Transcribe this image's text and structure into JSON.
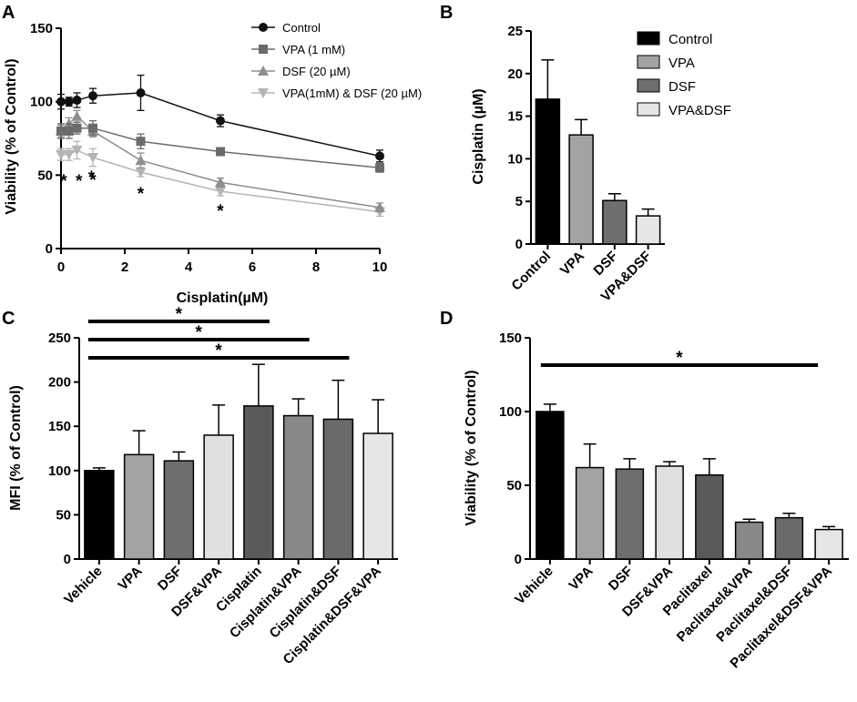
{
  "chart_data": [
    {
      "panel": "A",
      "type": "line",
      "xlabel": "Cisplatin(µM)",
      "ylabel": "Viability (% of Control)",
      "xlim": [
        0,
        10
      ],
      "ylim": [
        0,
        150
      ],
      "xticks": [
        0,
        2,
        4,
        6,
        8,
        10
      ],
      "yticks": [
        0,
        50,
        100,
        150
      ],
      "x": [
        0,
        0.25,
        0.5,
        1,
        2.5,
        5,
        10
      ],
      "legend_position": "top-right",
      "series": [
        {
          "name": "Control",
          "marker": "circle",
          "color": "#111111",
          "values": [
            100,
            100,
            101,
            104,
            106,
            87,
            63
          ],
          "errors": [
            5,
            3,
            5,
            5,
            12,
            4,
            4
          ]
        },
        {
          "name": "VPA (1 mM)",
          "marker": "square",
          "color": "#6b6b6b",
          "values": [
            80,
            80,
            82,
            82,
            73,
            66,
            55
          ],
          "errors": [
            5,
            5,
            4,
            5,
            5,
            2,
            3
          ]
        },
        {
          "name": "DSF (20 µM)",
          "marker": "triangle",
          "color": "#8e8e8e",
          "values": [
            80,
            85,
            90,
            80,
            60,
            45,
            28
          ],
          "errors": [
            4,
            4,
            4,
            4,
            5,
            3,
            3
          ]
        },
        {
          "name": "VPA(1mM) & DSF (20 µM)",
          "marker": "triangle-down",
          "color": "#b5b5b5",
          "values": [
            64,
            64,
            67,
            62,
            52,
            39,
            25
          ],
          "errors": [
            4,
            4,
            6,
            6,
            3,
            3,
            3
          ]
        }
      ],
      "significance_marks": [
        {
          "x": 0,
          "label": "*"
        },
        {
          "x": 0.25,
          "label": "*"
        },
        {
          "x": 0.5,
          "label": "*"
        },
        {
          "x": 1,
          "label": "*"
        },
        {
          "x": 2.5,
          "label": "*"
        },
        {
          "x": 5,
          "label": "*"
        }
      ]
    },
    {
      "panel": "B",
      "type": "bar",
      "ylabel": "Cisplatin (µM)",
      "ylim": [
        0,
        25
      ],
      "yticks": [
        0,
        5,
        10,
        15,
        20,
        25
      ],
      "categories": [
        "Control",
        "VPA",
        "DSF",
        "VPA&DSF"
      ],
      "values": [
        17,
        12.8,
        5.1,
        3.3
      ],
      "errors": [
        4.6,
        1.8,
        0.8,
        0.8
      ],
      "colors": [
        "#000000",
        "#a3a3a3",
        "#6e6e6e",
        "#e6e6e6"
      ],
      "legend": [
        "Control",
        "VPA",
        "DSF",
        "VPA&DSF"
      ],
      "legend_position": "top-right"
    },
    {
      "panel": "C",
      "type": "bar",
      "ylabel": "MFI (% of Control)",
      "ylim": [
        0,
        250
      ],
      "yticks": [
        0,
        50,
        100,
        150,
        200,
        250
      ],
      "categories": [
        "Vehicle",
        "VPA",
        "DSF",
        "DSF&VPA",
        "Cisplatin",
        "Cisplatin&VPA",
        "Cisplatin&DSF",
        "Cisplatin&DSF&VPA"
      ],
      "values": [
        100,
        118,
        111,
        140,
        173,
        162,
        158,
        142
      ],
      "errors": [
        3,
        27,
        10,
        34,
        47,
        19,
        44,
        38
      ],
      "colors": [
        "#000000",
        "#a3a3a3",
        "#6e6e6e",
        "#e0e0e0",
        "#5a5a5a",
        "#888888",
        "#6a6a6a",
        "#e6e6e6"
      ],
      "significance": [
        {
          "from": "Vehicle",
          "to": "Cisplatin",
          "label": "*"
        },
        {
          "from": "Vehicle",
          "to": "Cisplatin&VPA",
          "label": "*"
        },
        {
          "from": "Vehicle",
          "to": "Cisplatin&DSF",
          "label": "*"
        }
      ]
    },
    {
      "panel": "D",
      "type": "bar",
      "ylabel": "Viability (% of Control)",
      "ylim": [
        0,
        150
      ],
      "yticks": [
        0,
        50,
        100,
        150
      ],
      "categories": [
        "Vehicle",
        "VPA",
        "DSF",
        "DSF&VPA",
        "Paclitaxel",
        "Paclitaxel&VPA",
        "Paclitaxel&DSF",
        "Paclitaxel&DSF&VPA"
      ],
      "values": [
        100,
        62,
        61,
        63,
        57,
        25,
        28,
        20
      ],
      "errors": [
        5,
        16,
        7,
        3,
        11,
        2,
        3,
        2
      ],
      "colors": [
        "#000000",
        "#a3a3a3",
        "#6e6e6e",
        "#e0e0e0",
        "#5a5a5a",
        "#888888",
        "#6a6a6a",
        "#e6e6e6"
      ],
      "significance": [
        {
          "from": "Vehicle",
          "to": "Paclitaxel&DSF&VPA",
          "label": "*"
        }
      ]
    }
  ]
}
